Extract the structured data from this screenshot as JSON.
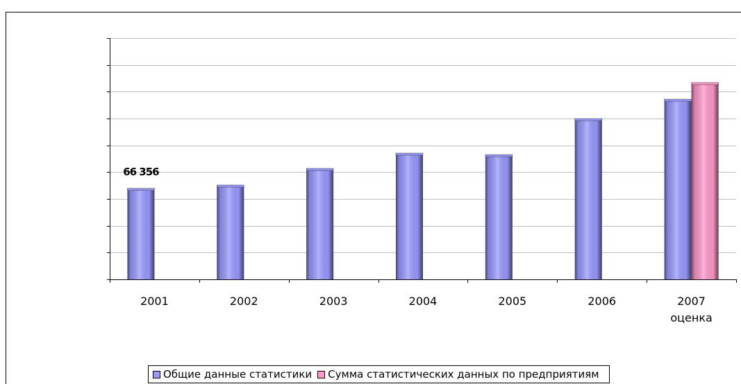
{
  "chart_data": {
    "type": "bar",
    "categories": [
      "2001",
      "2002",
      "2003",
      "2004",
      "2005",
      "2006",
      "2007\nоценка"
    ],
    "series": [
      {
        "name": "Общие данные статистики",
        "color": "#9999ff",
        "values": [
          66356,
          68800,
          81200,
          92600,
          91500,
          118400,
          132900
        ],
        "value_labels": [
          "66 356",
          null,
          null,
          null,
          null,
          null,
          null
        ]
      },
      {
        "name": "Сумма статистических данных по предприятиям",
        "color": "#ff99cc",
        "values": [
          null,
          null,
          null,
          null,
          null,
          null,
          145300
        ]
      }
    ],
    "ylim": [
      0,
      180000
    ],
    "yticks": [
      0,
      20000,
      40000,
      60000,
      80000,
      100000,
      120000,
      140000,
      160000,
      180000
    ],
    "grid": true
  }
}
